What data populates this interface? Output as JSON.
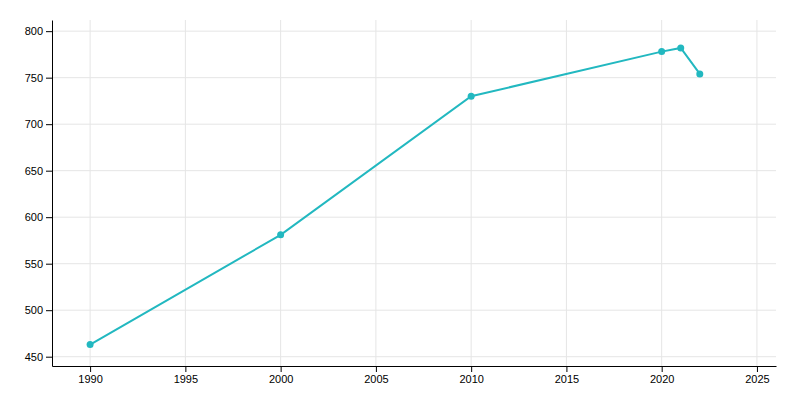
{
  "chart_data": {
    "type": "line",
    "x": [
      1990,
      2000,
      2010,
      2020,
      2021,
      2022
    ],
    "values": [
      463,
      581,
      730,
      778,
      782,
      754
    ],
    "color": "#22b8c0",
    "marker": "circle",
    "xlim": [
      1988,
      2026
    ],
    "ylim": [
      440,
      812
    ],
    "xticks": [
      1990,
      1995,
      2000,
      2005,
      2010,
      2015,
      2020,
      2025
    ],
    "yticks": [
      450,
      500,
      550,
      600,
      650,
      700,
      750,
      800
    ],
    "grid": true
  }
}
